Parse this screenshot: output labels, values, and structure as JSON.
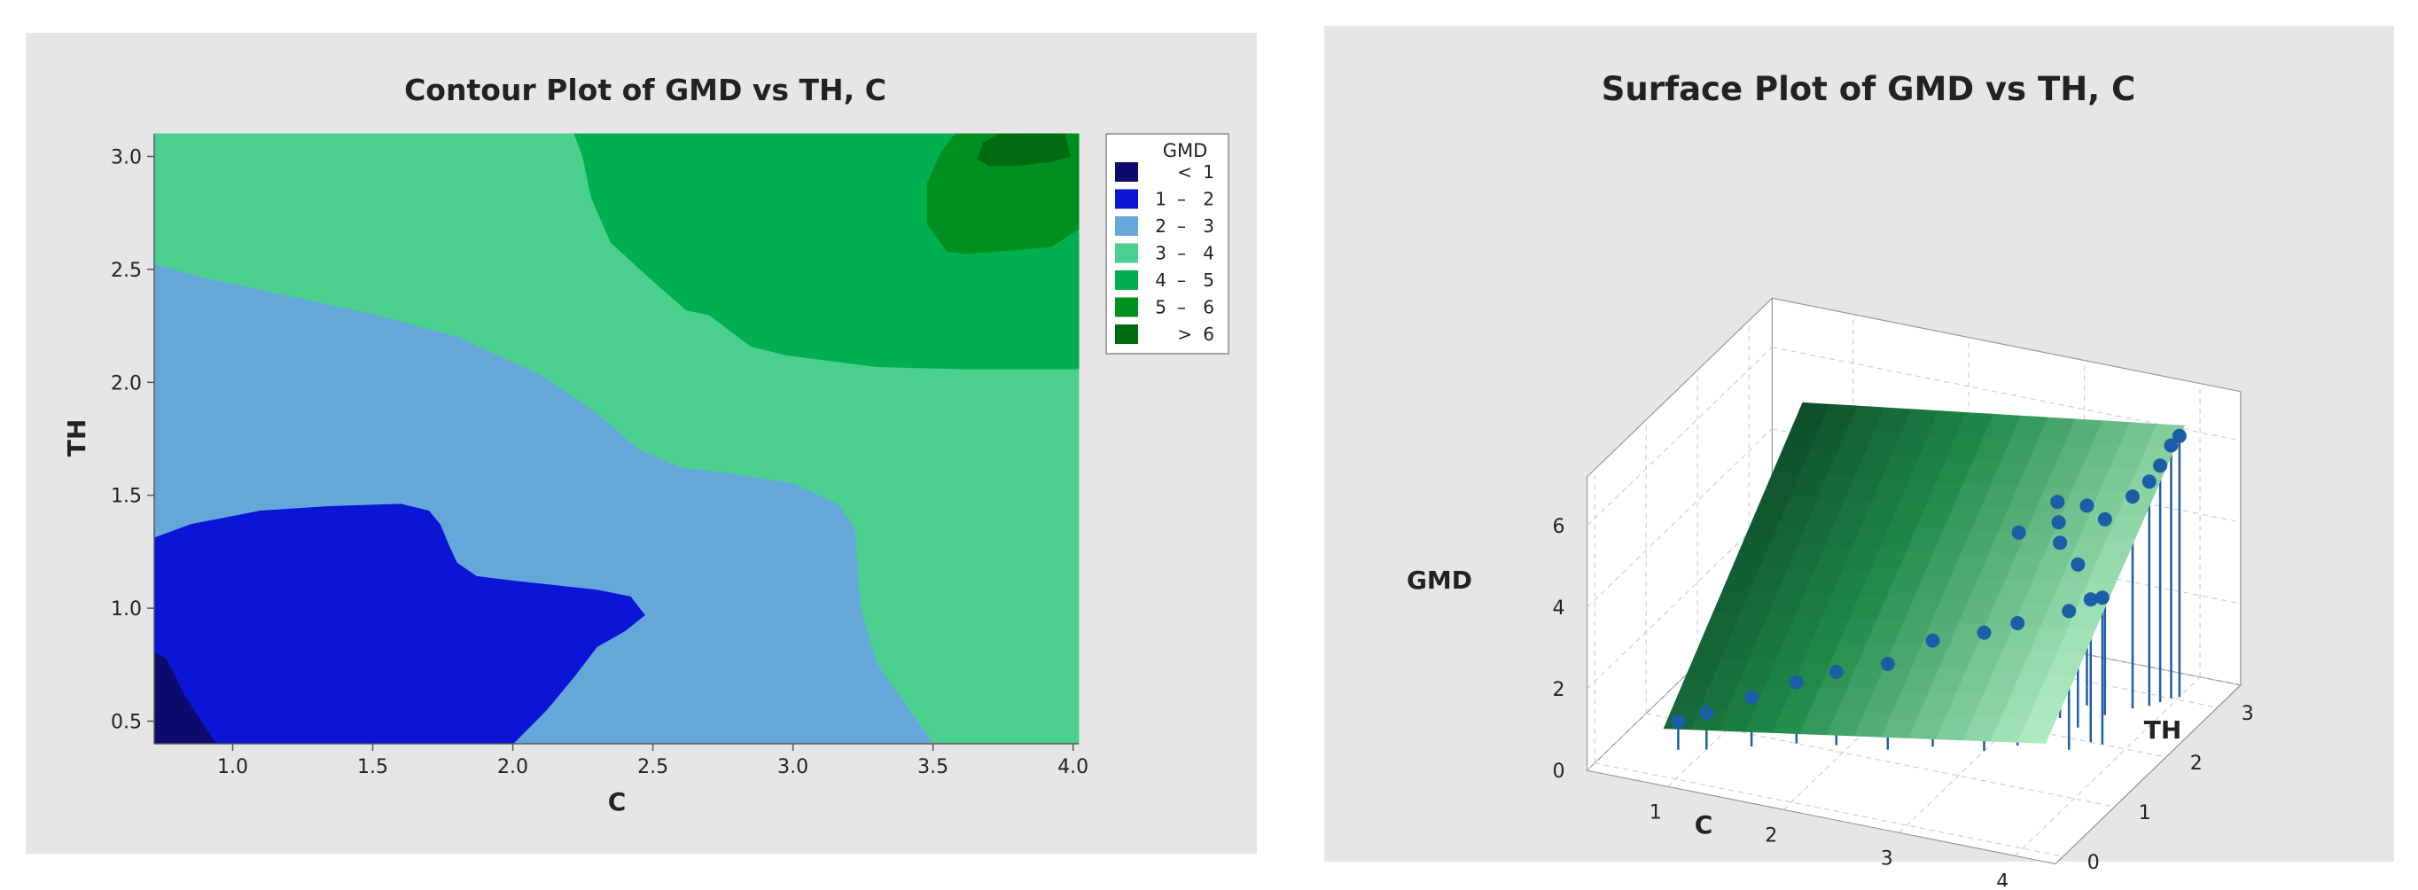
{
  "colors": {
    "lt1": "#0b0b6e",
    "c1_2": "#0a15d6",
    "c2_3": "#66a7da",
    "c3_4": "#4acf8f",
    "c4_5": "#00b050",
    "c5_6": "#00901f",
    "gt6": "#006c12",
    "panel_bg": "#e6e6e6",
    "point": "#1b5ea6"
  },
  "chart_data": [
    {
      "type": "contour",
      "title": "Contour Plot of GMD vs TH, C",
      "xlabel": "C",
      "ylabel": "TH",
      "xlim": [
        0.72,
        4.02
      ],
      "ylim": [
        0.4,
        3.1
      ],
      "xticks": [
        "1.0",
        "1.5",
        "2.0",
        "2.5",
        "3.0",
        "3.5",
        "4.0"
      ],
      "yticks": [
        "0.5",
        "1.0",
        "1.5",
        "2.0",
        "2.5",
        "3.0"
      ],
      "legend": {
        "title": "GMD",
        "placement": "right",
        "entries": [
          {
            "op": "<",
            "value": "1",
            "color_key": "lt1"
          },
          {
            "op": "1",
            "value": "2",
            "color_key": "c1_2"
          },
          {
            "op": "2",
            "value": "3",
            "color_key": "c2_3"
          },
          {
            "op": "3",
            "value": "4",
            "color_key": "c3_4"
          },
          {
            "op": "4",
            "value": "5",
            "color_key": "c4_5"
          },
          {
            "op": "5",
            "value": "6",
            "color_key": "c5_6"
          },
          {
            "op": ">",
            "value": "6",
            "color_key": "gt6"
          }
        ]
      },
      "regions": [
        {
          "band": "c3_4",
          "points": [
            [
              0.72,
              0.4
            ],
            [
              4.02,
              0.4
            ],
            [
              4.02,
              3.1
            ],
            [
              0.72,
              3.1
            ]
          ]
        },
        {
          "band": "c4_5",
          "points": [
            [
              2.22,
              3.1
            ],
            [
              4.02,
              3.1
            ],
            [
              4.02,
              2.06
            ],
            [
              3.6,
              2.06
            ],
            [
              3.3,
              2.07
            ],
            [
              2.98,
              2.12
            ],
            [
              2.85,
              2.16
            ],
            [
              2.7,
              2.3
            ],
            [
              2.62,
              2.32
            ],
            [
              2.5,
              2.45
            ],
            [
              2.35,
              2.62
            ],
            [
              2.28,
              2.82
            ],
            [
              2.25,
              3.0
            ]
          ]
        },
        {
          "band": "c5_6",
          "points": [
            [
              3.58,
              3.1
            ],
            [
              4.02,
              3.1
            ],
            [
              4.02,
              2.68
            ],
            [
              3.92,
              2.6
            ],
            [
              3.62,
              2.57
            ],
            [
              3.55,
              2.58
            ],
            [
              3.48,
              2.7
            ],
            [
              3.48,
              2.88
            ],
            [
              3.53,
              3.02
            ]
          ]
        },
        {
          "band": "gt6",
          "points": [
            [
              3.74,
              3.1
            ],
            [
              3.97,
              3.1
            ],
            [
              3.99,
              3.0
            ],
            [
              3.93,
              2.98
            ],
            [
              3.8,
              2.96
            ],
            [
              3.7,
              2.96
            ],
            [
              3.66,
              2.99
            ],
            [
              3.68,
              3.06
            ]
          ]
        },
        {
          "band": "c2_3",
          "points": [
            [
              0.72,
              0.4
            ],
            [
              3.5,
              0.4
            ],
            [
              3.3,
              0.75
            ],
            [
              3.24,
              1.0
            ],
            [
              3.22,
              1.35
            ],
            [
              3.16,
              1.46
            ],
            [
              3.0,
              1.55
            ],
            [
              2.75,
              1.6
            ],
            [
              2.6,
              1.62
            ],
            [
              2.45,
              1.7
            ],
            [
              2.3,
              1.86
            ],
            [
              2.1,
              2.03
            ],
            [
              1.8,
              2.2
            ],
            [
              1.5,
              2.3
            ],
            [
              1.2,
              2.38
            ],
            [
              0.9,
              2.46
            ],
            [
              0.72,
              2.52
            ]
          ]
        },
        {
          "band": "c1_2",
          "points": [
            [
              0.72,
              0.4
            ],
            [
              2.0,
              0.4
            ],
            [
              2.12,
              0.55
            ],
            [
              2.22,
              0.7
            ],
            [
              2.3,
              0.83
            ],
            [
              2.4,
              0.9
            ],
            [
              2.47,
              0.97
            ],
            [
              2.42,
              1.05
            ],
            [
              2.3,
              1.08
            ],
            [
              2.0,
              1.12
            ],
            [
              1.87,
              1.14
            ],
            [
              1.8,
              1.2
            ],
            [
              1.77,
              1.28
            ],
            [
              1.74,
              1.37
            ],
            [
              1.7,
              1.43
            ],
            [
              1.6,
              1.46
            ],
            [
              1.35,
              1.45
            ],
            [
              1.1,
              1.43
            ],
            [
              0.85,
              1.37
            ],
            [
              0.72,
              1.31
            ]
          ]
        },
        {
          "band": "lt1",
          "points": [
            [
              0.72,
              0.4
            ],
            [
              0.94,
              0.4
            ],
            [
              0.86,
              0.55
            ],
            [
              0.82,
              0.63
            ],
            [
              0.79,
              0.71
            ],
            [
              0.76,
              0.78
            ],
            [
              0.72,
              0.8
            ]
          ]
        }
      ]
    },
    {
      "type": "surface",
      "title": "Surface Plot of GMD vs TH, C",
      "xlabel": "C",
      "ylabel": "TH",
      "zlabel": "GMD",
      "xticks": [
        "1",
        "2",
        "3",
        "4"
      ],
      "yticks": [
        "0",
        "1",
        "2",
        "3"
      ],
      "zticks": [
        "0",
        "2",
        "4",
        "6"
      ],
      "xlim": [
        0.72,
        4.02
      ],
      "ylim": [
        0.4,
        3.1
      ],
      "zlim": [
        0,
        7.2
      ],
      "surface_corners": [
        {
          "C": 0.72,
          "TH": 0.4,
          "GMD": 0.6
        },
        {
          "C": 4.02,
          "TH": 0.4,
          "GMD": 2.1
        },
        {
          "C": 4.02,
          "TH": 3.1,
          "GMD": 6.6
        },
        {
          "C": 0.72,
          "TH": 3.1,
          "GMD": 5.3
        }
      ],
      "points": [
        {
          "C": 0.8,
          "TH": 0.5,
          "GMD": 0.7
        },
        {
          "C": 1.0,
          "TH": 0.6,
          "GMD": 0.9
        },
        {
          "C": 1.3,
          "TH": 0.8,
          "GMD": 1.2
        },
        {
          "C": 1.6,
          "TH": 1.0,
          "GMD": 1.5
        },
        {
          "C": 1.9,
          "TH": 1.1,
          "GMD": 1.8
        },
        {
          "C": 2.3,
          "TH": 1.2,
          "GMD": 2.1
        },
        {
          "C": 2.6,
          "TH": 1.4,
          "GMD": 2.6
        },
        {
          "C": 3.0,
          "TH": 1.5,
          "GMD": 2.9
        },
        {
          "C": 3.2,
          "TH": 1.7,
          "GMD": 3.0
        },
        {
          "C": 3.6,
          "TH": 1.8,
          "GMD": 3.4
        },
        {
          "C": 3.7,
          "TH": 2.0,
          "GMD": 3.5
        },
        {
          "C": 3.8,
          "TH": 2.0,
          "GMD": 3.6
        },
        {
          "C": 3.5,
          "TH": 2.2,
          "GMD": 4.0
        },
        {
          "C": 3.3,
          "TH": 2.3,
          "GMD": 4.3
        },
        {
          "C": 3.6,
          "TH": 2.5,
          "GMD": 4.8
        },
        {
          "C": 3.75,
          "TH": 2.7,
          "GMD": 5.2
        },
        {
          "C": 3.85,
          "TH": 2.8,
          "GMD": 5.5
        },
        {
          "C": 3.9,
          "TH": 2.9,
          "GMD": 5.8
        },
        {
          "C": 3.95,
          "TH": 3.0,
          "GMD": 6.2
        },
        {
          "C": 4.0,
          "TH": 3.05,
          "GMD": 6.4
        },
        {
          "C": 3.4,
          "TH": 2.6,
          "GMD": 4.9
        },
        {
          "C": 3.2,
          "TH": 2.5,
          "GMD": 4.5
        },
        {
          "C": 2.9,
          "TH": 2.4,
          "GMD": 4.2
        },
        {
          "C": 3.1,
          "TH": 2.7,
          "GMD": 4.7
        }
      ]
    }
  ]
}
